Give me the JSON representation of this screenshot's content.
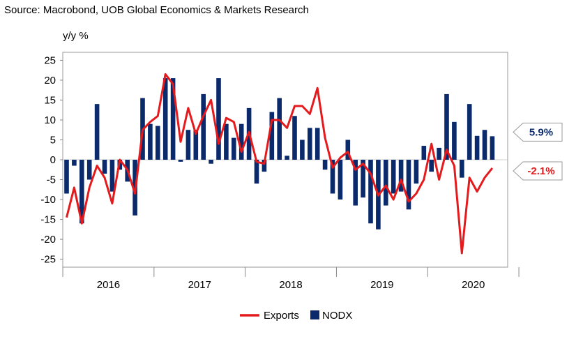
{
  "source": "Source: Macrobond, UOB Global Economics & Markets Research",
  "chart_data": {
    "type": "bar+line",
    "ylabel": "y/y %",
    "ylim": [
      -27,
      27
    ],
    "yticks": [
      25,
      20,
      15,
      10,
      5,
      0,
      -5,
      -10,
      -15,
      -20,
      -25
    ],
    "grid": false,
    "legend_position": "bottom",
    "year_labels": [
      "2016",
      "2017",
      "2018",
      "2019",
      "2020"
    ],
    "start_month": "2016-01",
    "series": [
      {
        "name": "Exports",
        "type": "line",
        "color": "#e41a1c",
        "values": [
          -14.5,
          -7,
          -16,
          -7,
          -1.5,
          -4.5,
          -11,
          0,
          -2.5,
          -8.5,
          7.5,
          9.5,
          11,
          21.5,
          19,
          4.5,
          13,
          6.5,
          11,
          15,
          4,
          10.5,
          9.5,
          2,
          7,
          -0.5,
          -1,
          10,
          10,
          8,
          13.5,
          13.5,
          11.5,
          18,
          5.5,
          -2,
          0.5,
          2,
          -2.5,
          -1,
          -3.5,
          -9,
          -6.5,
          -10,
          -5,
          -10.5,
          -8.5,
          -5,
          4,
          -5,
          2.5,
          -1.5,
          -23.5,
          -4.5,
          -8,
          -4.5,
          -2.1
        ]
      },
      {
        "name": "NODX",
        "type": "bar",
        "color": "#0a2a6c",
        "values": [
          -8.5,
          -1.5,
          -16,
          -5,
          14,
          -3.5,
          -8,
          -2.5,
          -5.5,
          -14,
          15.5,
          9,
          8.5,
          20.5,
          20.5,
          -0.5,
          7.5,
          7.5,
          16.5,
          -1,
          20.5,
          9,
          5.5,
          9,
          13,
          -6,
          -3,
          12,
          15.5,
          1,
          11,
          5,
          8,
          8,
          -2.5,
          -8.5,
          -10,
          5,
          -11.5,
          -9.5,
          -16,
          -17.5,
          -11.5,
          -8.5,
          -8,
          -12.5,
          -6,
          3.5,
          -3,
          3,
          16.5,
          9.5,
          -4.5,
          14,
          6,
          7.5,
          5.9
        ]
      }
    ],
    "annotations": [
      {
        "text": "5.9%",
        "series": "NODX",
        "value": 5.9
      },
      {
        "text": "-2.1%",
        "series": "Exports",
        "value": -2.1
      }
    ]
  }
}
